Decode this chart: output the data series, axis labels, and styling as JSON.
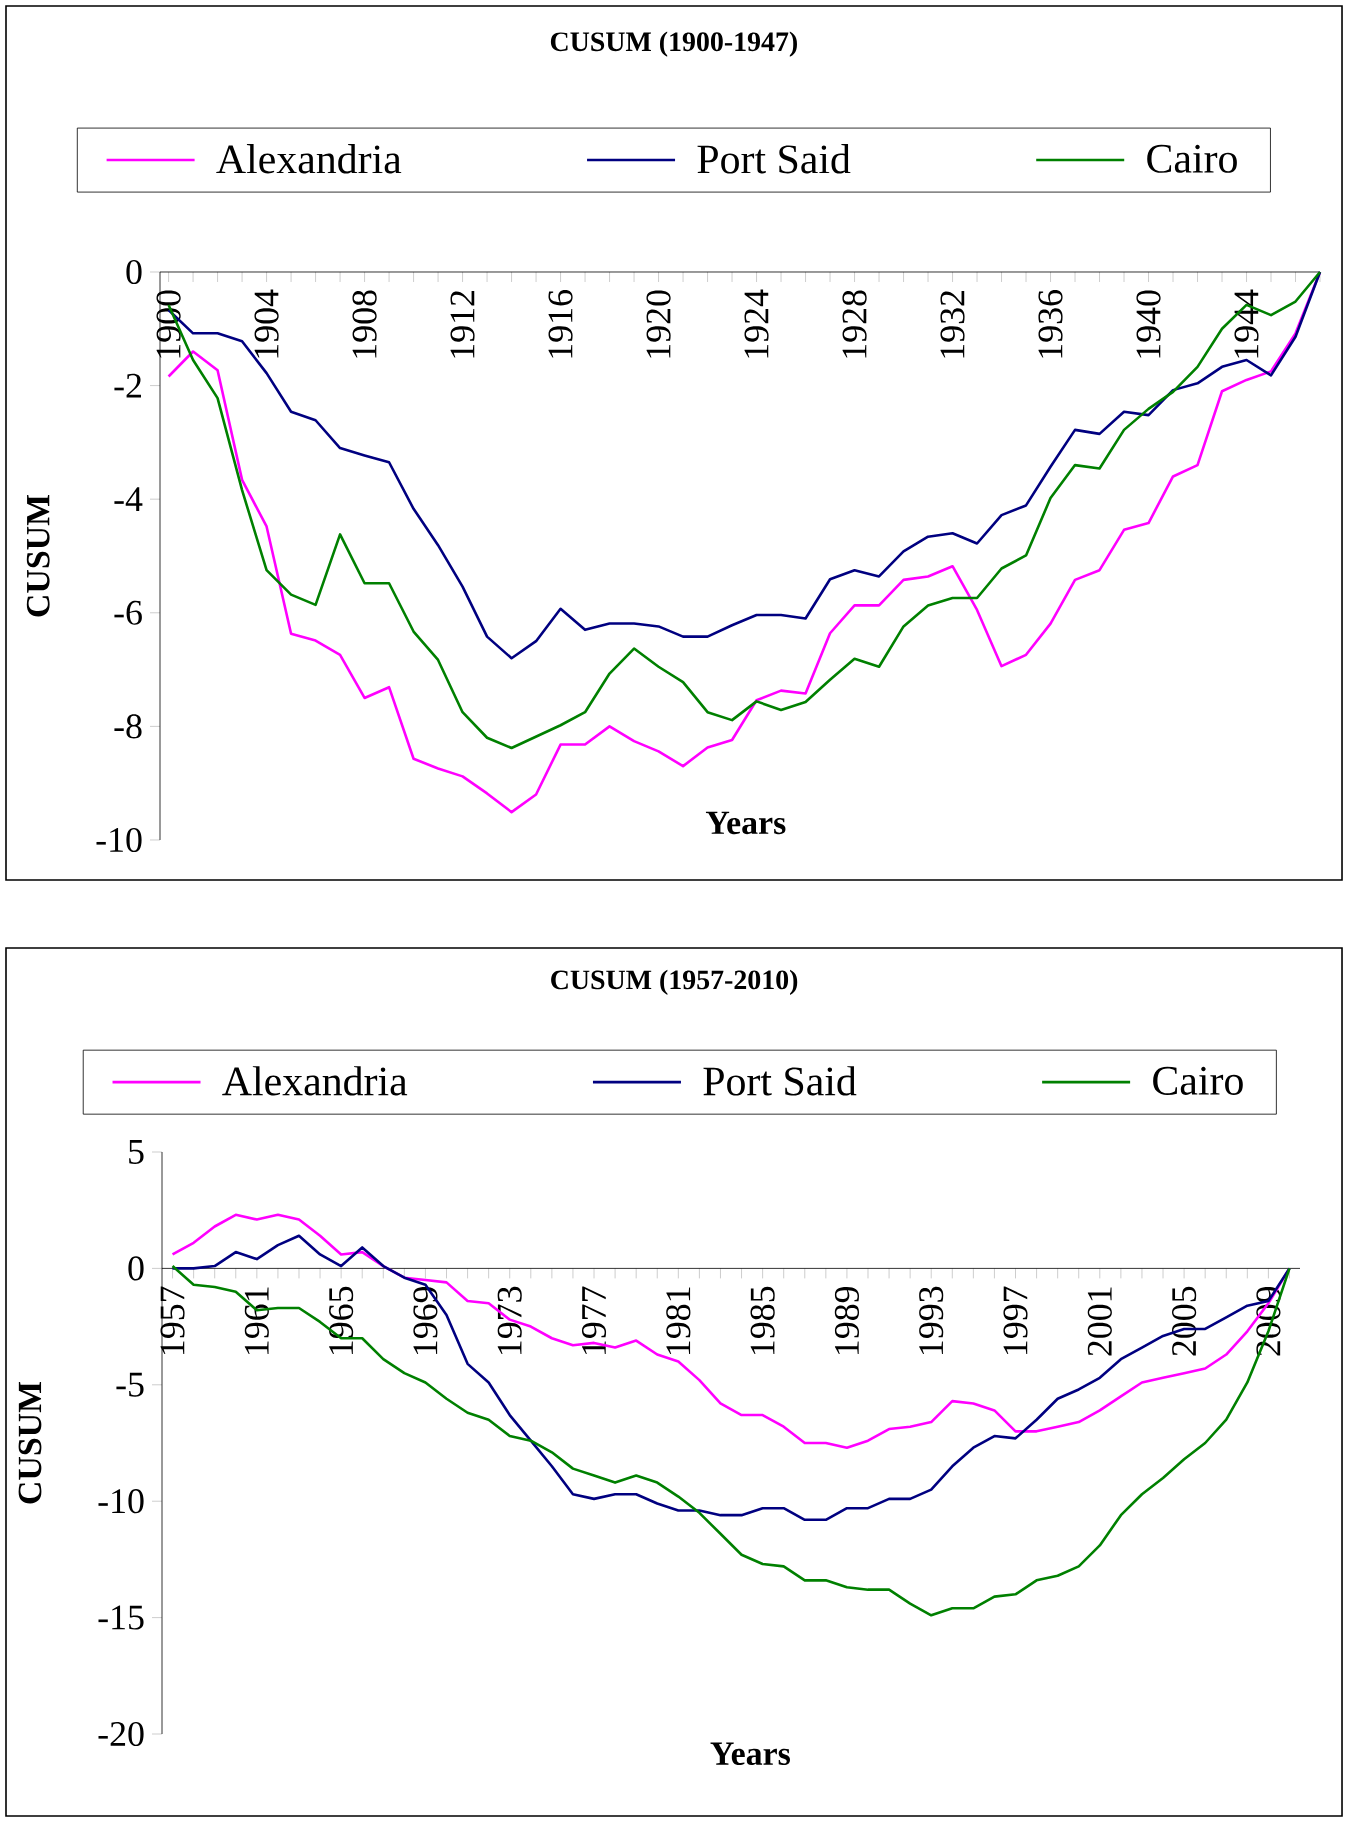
{
  "chart_data": [
    {
      "type": "line",
      "title": "CUSUM (1900-1947)",
      "xlabel": "Years",
      "ylabel": "CUSUM",
      "legend": "top",
      "ylim": [
        -10,
        0
      ],
      "yticks": [
        -10,
        -8,
        -6,
        -4,
        -2,
        0
      ],
      "categories": [
        "1900",
        null,
        null,
        null,
        "1904",
        null,
        null,
        null,
        "1908",
        null,
        null,
        null,
        "1912",
        null,
        null,
        null,
        "1916",
        null,
        null,
        null,
        "1920",
        null,
        null,
        null,
        "1924",
        null,
        null,
        null,
        "1928",
        null,
        null,
        null,
        "1932",
        null,
        null,
        null,
        "1936",
        null,
        null,
        null,
        "1940",
        null,
        null,
        null,
        "1944",
        null,
        null,
        null
      ],
      "series": [
        {
          "name": "Alexandria",
          "color": "#ff00ff",
          "values": [
            -1.84,
            -1.4,
            -1.73,
            -3.66,
            -4.48,
            -6.37,
            -6.49,
            -6.74,
            -7.5,
            -7.31,
            -8.57,
            -8.74,
            -8.88,
            -9.18,
            -9.51,
            -9.2,
            -8.32,
            -8.32,
            -8.0,
            -8.26,
            -8.44,
            -8.7,
            -8.37,
            -8.24,
            -7.54,
            -7.37,
            -7.42,
            -6.36,
            -5.87,
            -5.87,
            -5.42,
            -5.36,
            -5.18,
            -5.95,
            -6.94,
            -6.74,
            -6.19,
            -5.42,
            -5.25,
            -4.54,
            -4.42,
            -3.6,
            -3.4,
            -2.1,
            -1.9,
            -1.75,
            -1.08,
            0
          ]
        },
        {
          "name": "Port Said",
          "color": "#000080",
          "values": [
            -0.67,
            -1.08,
            -1.08,
            -1.22,
            -1.78,
            -2.46,
            -2.61,
            -3.1,
            -3.23,
            -3.35,
            -4.17,
            -4.81,
            -5.54,
            -6.42,
            -6.8,
            -6.5,
            -5.93,
            -6.3,
            -6.19,
            -6.19,
            -6.24,
            -6.42,
            -6.42,
            -6.22,
            -6.04,
            -6.04,
            -6.1,
            -5.41,
            -5.25,
            -5.36,
            -4.92,
            -4.66,
            -4.6,
            -4.78,
            -4.28,
            -4.11,
            -3.43,
            -2.78,
            -2.85,
            -2.46,
            -2.52,
            -2.08,
            -1.96,
            -1.67,
            -1.55,
            -1.82,
            -1.14,
            0
          ]
        },
        {
          "name": "Cairo",
          "color": "#008000",
          "values": [
            -0.58,
            -1.55,
            -2.22,
            -3.84,
            -5.25,
            -5.68,
            -5.86,
            -4.62,
            -5.48,
            -5.48,
            -6.33,
            -6.83,
            -7.75,
            -8.2,
            -8.38,
            -8.18,
            -7.98,
            -7.75,
            -7.07,
            -6.63,
            -6.95,
            -7.22,
            -7.75,
            -7.89,
            -7.56,
            -7.71,
            -7.57,
            -7.18,
            -6.81,
            -6.95,
            -6.24,
            -5.87,
            -5.74,
            -5.74,
            -5.22,
            -4.99,
            -3.98,
            -3.4,
            -3.46,
            -2.78,
            -2.41,
            -2.11,
            -1.67,
            -1.0,
            -0.58,
            -0.76,
            -0.52,
            0
          ]
        }
      ]
    },
    {
      "type": "line",
      "title": "CUSUM (1957-2010)",
      "xlabel": "Years",
      "ylabel": "CUSUM",
      "legend": "top",
      "ylim": [
        -20,
        5
      ],
      "yticks": [
        -20,
        -15,
        -10,
        -5,
        0,
        5
      ],
      "categories": [
        "1957",
        null,
        null,
        null,
        "1961",
        null,
        null,
        null,
        "1965",
        null,
        null,
        null,
        "1969",
        null,
        null,
        null,
        "1973",
        null,
        null,
        null,
        "1977",
        null,
        null,
        null,
        "1981",
        null,
        null,
        null,
        "1985",
        null,
        null,
        null,
        "1989",
        null,
        null,
        null,
        "1993",
        null,
        null,
        null,
        "1997",
        null,
        null,
        null,
        "2001",
        null,
        null,
        null,
        "2005",
        null,
        null,
        null,
        "2009",
        null
      ],
      "series": [
        {
          "name": "Alexandria",
          "color": "#ff00ff",
          "values": [
            0.6,
            1.1,
            1.8,
            2.3,
            2.1,
            2.3,
            2.1,
            1.4,
            0.6,
            0.7,
            0.1,
            -0.4,
            -0.5,
            -0.6,
            -1.4,
            -1.5,
            -2.2,
            -2.5,
            -3.0,
            -3.3,
            -3.2,
            -3.4,
            -3.1,
            -3.7,
            -4.0,
            -4.8,
            -5.8,
            -6.3,
            -6.3,
            -6.8,
            -7.5,
            -7.5,
            -7.7,
            -7.4,
            -6.9,
            -6.8,
            -6.6,
            -5.7,
            -5.8,
            -6.1,
            -7.0,
            -7.0,
            -6.8,
            -6.6,
            -6.1,
            -5.5,
            -4.9,
            -4.7,
            -4.5,
            -4.3,
            -3.7,
            -2.7,
            -1.5,
            0
          ]
        },
        {
          "name": "Port Said",
          "color": "#000080",
          "values": [
            0,
            0,
            0.1,
            0.7,
            0.4,
            1.0,
            1.4,
            0.6,
            0.1,
            0.9,
            0.1,
            -0.4,
            -0.7,
            -2.0,
            -4.1,
            -4.9,
            -6.3,
            -7.4,
            -8.5,
            -9.7,
            -9.9,
            -9.7,
            -9.7,
            -10.1,
            -10.4,
            -10.4,
            -10.6,
            -10.6,
            -10.3,
            -10.3,
            -10.8,
            -10.8,
            -10.3,
            -10.3,
            -9.9,
            -9.9,
            -9.5,
            -8.5,
            -7.7,
            -7.2,
            -7.3,
            -6.5,
            -5.6,
            -5.2,
            -4.7,
            -3.9,
            -3.4,
            -2.9,
            -2.6,
            -2.6,
            -2.1,
            -1.6,
            -1.4,
            0
          ]
        },
        {
          "name": "Cairo",
          "color": "#008000",
          "values": [
            0.1,
            -0.7,
            -0.8,
            -1.0,
            -1.8,
            -1.7,
            -1.7,
            -2.3,
            -3.0,
            -3.0,
            -3.9,
            -4.5,
            -4.9,
            -5.6,
            -6.2,
            -6.5,
            -7.2,
            -7.4,
            -7.9,
            -8.6,
            -8.9,
            -9.2,
            -8.9,
            -9.2,
            -9.8,
            -10.5,
            -11.4,
            -12.3,
            -12.7,
            -12.8,
            -13.4,
            -13.4,
            -13.7,
            -13.8,
            -13.8,
            -14.4,
            -14.9,
            -14.6,
            -14.6,
            -14.1,
            -14.0,
            -13.4,
            -13.2,
            -12.8,
            -11.9,
            -10.6,
            -9.7,
            -9.0,
            -8.2,
            -7.5,
            -6.5,
            -4.9,
            -2.7,
            0
          ]
        }
      ]
    }
  ]
}
